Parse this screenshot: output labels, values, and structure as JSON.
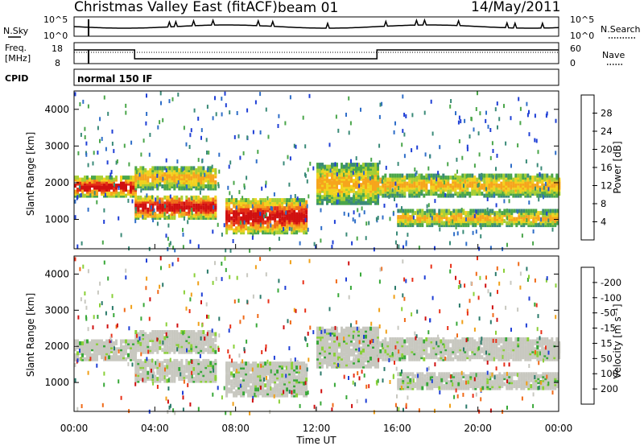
{
  "header": {
    "title": "Christmas Valley East (fitACF)",
    "beam": "beam 01",
    "date": "14/May/2011"
  },
  "strip": {
    "nsky_label": "N.Sky",
    "nsky_hi": "10^5",
    "nsky_lo": "10^0",
    "nsearch_label": "N.Search",
    "nsearch_hi": "10^5",
    "nsearch_lo": "10^0",
    "freq_label": "Freq.",
    "freq_unit": "[MHz]",
    "freq_hi": "18",
    "freq_lo": "8",
    "nave_label": "Nave",
    "nave_hi": "60",
    "nave_lo": "0",
    "cpid_label": "CPID",
    "cpid_value": "normal 150 IF"
  },
  "chart_data": [
    {
      "type": "heatmap",
      "name": "power-panel",
      "ylabel": "Slant Range [km]",
      "xlabel": "Time UT",
      "xticks": [
        "00:00",
        "04:00",
        "08:00",
        "12:00",
        "16:00",
        "20:00",
        "00:00"
      ],
      "yticks": [
        "1000",
        "2000",
        "3000",
        "4000"
      ],
      "ylim": [
        200,
        4500
      ],
      "colorbar": {
        "label": "Power [dB]",
        "ticks": [
          "4",
          "8",
          "12",
          "16",
          "20",
          "24",
          "28"
        ],
        "colors": [
          "#1f3fd6",
          "#2f6ec8",
          "#3a8a78",
          "#4aa64a",
          "#a8cf34",
          "#f2d21e",
          "#f6a51c",
          "#f0701a",
          "#e53016",
          "#d01010"
        ]
      },
      "bands": [
        {
          "t0": 0.0,
          "t1": 3.0,
          "r0": 1700,
          "r1": 2200,
          "level": "high"
        },
        {
          "t0": 3.0,
          "t1": 7.0,
          "r0": 1100,
          "r1": 1700,
          "level": "high"
        },
        {
          "t0": 3.0,
          "t1": 7.0,
          "r0": 1900,
          "r1": 2500,
          "level": "mid"
        },
        {
          "t0": 7.5,
          "t1": 11.5,
          "r0": 700,
          "r1": 1600,
          "level": "high"
        },
        {
          "t0": 12.0,
          "t1": 15.0,
          "r0": 1500,
          "r1": 2600,
          "level": "mid"
        },
        {
          "t0": 15.0,
          "t1": 24.0,
          "r0": 1700,
          "r1": 2300,
          "level": "mid"
        },
        {
          "t0": 16.0,
          "t1": 24.0,
          "r0": 900,
          "r1": 1300,
          "level": "mid"
        }
      ]
    },
    {
      "type": "heatmap",
      "name": "velocity-panel",
      "ylabel": "Slant Range [km]",
      "xlabel": "Time UT",
      "xticks": [
        "00:00",
        "04:00",
        "08:00",
        "12:00",
        "16:00",
        "20:00",
        "00:00"
      ],
      "yticks": [
        "1000",
        "2000",
        "3000",
        "4000"
      ],
      "ylim": [
        200,
        4500
      ],
      "colorbar": {
        "label": "Velocity [m s⁻¹]",
        "ticks": [
          "200",
          "100",
          "50",
          "15",
          "-15",
          "-50",
          "-100",
          "-200"
        ],
        "colors": [
          "#1f3fd6",
          "#2a7a6a",
          "#38a838",
          "#8ad038",
          "#c8c8c0",
          "#f0a018",
          "#f06a18",
          "#e83018",
          "#d01010"
        ]
      }
    }
  ]
}
